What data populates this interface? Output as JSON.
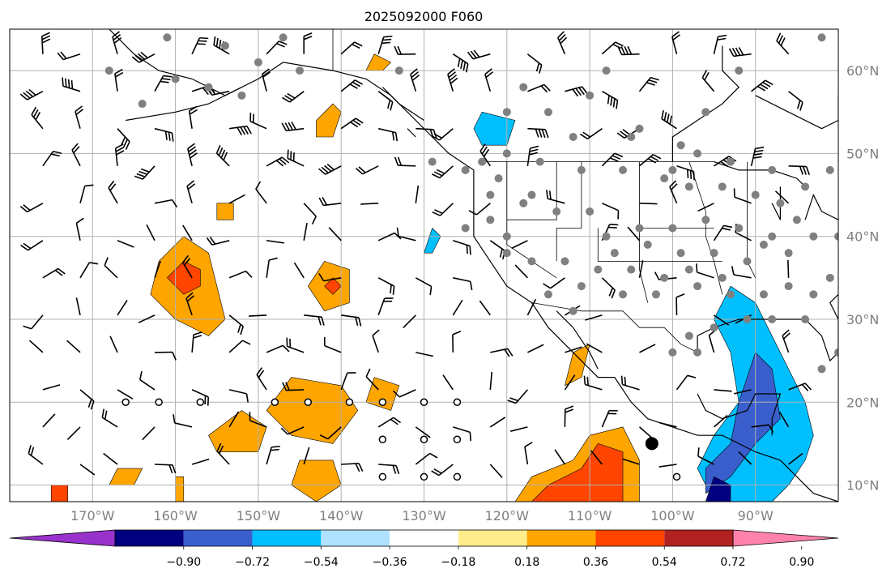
{
  "title": "2025092000 F060",
  "map": {
    "lon_range": [
      -180,
      -80
    ],
    "lat_range": [
      8,
      65
    ],
    "lat_labels": [
      {
        "lat": 60,
        "text": "60°N"
      },
      {
        "lat": 50,
        "text": "50°N"
      },
      {
        "lat": 40,
        "text": "40°N"
      },
      {
        "lat": 30,
        "text": "30°N"
      },
      {
        "lat": 20,
        "text": "20°N"
      },
      {
        "lat": 10,
        "text": "10°N"
      }
    ],
    "lon_labels": [
      {
        "lon": -170,
        "text": "170°W"
      },
      {
        "lon": -160,
        "text": "160°W"
      },
      {
        "lon": -150,
        "text": "150°W"
      },
      {
        "lon": -140,
        "text": "140°W"
      },
      {
        "lon": -130,
        "text": "130°W"
      },
      {
        "lon": -120,
        "text": "120°W"
      },
      {
        "lon": -110,
        "text": "110°W"
      },
      {
        "lon": -100,
        "text": "100°W"
      },
      {
        "lon": -90,
        "text": "90°W"
      }
    ],
    "gridlines": true,
    "colors": {
      "grid": "#b0b0b0",
      "coast": "#000000",
      "station": "#808080",
      "label": "#7f7f7f"
    },
    "stations_filled": [
      [
        -161,
        64
      ],
      [
        -154,
        63
      ],
      [
        -168,
        60
      ],
      [
        -160,
        59
      ],
      [
        -164,
        56
      ],
      [
        -150,
        61
      ],
      [
        -152,
        57
      ],
      [
        -147,
        64
      ],
      [
        -145,
        60
      ],
      [
        -156,
        58
      ],
      [
        -133,
        60
      ],
      [
        -118,
        58
      ],
      [
        -108,
        60
      ],
      [
        -110,
        57
      ],
      [
        -115,
        55
      ],
      [
        -120,
        55
      ],
      [
        -112,
        52
      ],
      [
        -105,
        52
      ],
      [
        -104,
        53
      ],
      [
        -96,
        55
      ],
      [
        -100,
        48
      ],
      [
        -97,
        50
      ],
      [
        -99,
        51
      ],
      [
        -93,
        49
      ],
      [
        -88,
        48
      ],
      [
        -81,
        48
      ],
      [
        -84,
        46
      ],
      [
        -82,
        64
      ],
      [
        -92,
        60
      ],
      [
        -123,
        49
      ],
      [
        -120,
        50
      ],
      [
        -116,
        49
      ],
      [
        -111,
        48
      ],
      [
        -106,
        48
      ],
      [
        -101,
        47
      ],
      [
        -98,
        46
      ],
      [
        -94,
        46
      ],
      [
        -90,
        45
      ],
      [
        -87,
        44
      ],
      [
        -85,
        42
      ],
      [
        -83,
        40
      ],
      [
        -80,
        40
      ],
      [
        -88,
        40
      ],
      [
        -92,
        41
      ],
      [
        -96,
        42
      ],
      [
        -100,
        41
      ],
      [
        -104,
        41
      ],
      [
        -108,
        40
      ],
      [
        -110,
        43
      ],
      [
        -114,
        43
      ],
      [
        -118,
        44
      ],
      [
        -122,
        45
      ],
      [
        -122,
        42
      ],
      [
        -120,
        40
      ],
      [
        -117,
        37
      ],
      [
        -113,
        37
      ],
      [
        -109,
        36
      ],
      [
        -105,
        36
      ],
      [
        -101,
        35
      ],
      [
        -97,
        34
      ],
      [
        -93,
        33
      ],
      [
        -89,
        33
      ],
      [
        -86,
        34
      ],
      [
        -83,
        33
      ],
      [
        -81,
        35
      ],
      [
        -84,
        30
      ],
      [
        -88,
        30
      ],
      [
        -91,
        30
      ],
      [
        -95,
        29
      ],
      [
        -98,
        28
      ],
      [
        -100,
        26
      ],
      [
        -97,
        26
      ],
      [
        -94,
        35
      ],
      [
        -99,
        38
      ],
      [
        -103,
        39
      ],
      [
        -107,
        38
      ],
      [
        -111,
        34
      ],
      [
        -115,
        33
      ],
      [
        -112,
        31
      ],
      [
        -120,
        38
      ],
      [
        -125,
        41
      ],
      [
        -125,
        48
      ],
      [
        -129,
        49
      ],
      [
        -121,
        47
      ],
      [
        -117,
        45
      ],
      [
        -106,
        33
      ],
      [
        -102,
        33
      ],
      [
        -98,
        36
      ],
      [
        -95,
        38
      ],
      [
        -91,
        37
      ],
      [
        -86,
        38
      ],
      [
        -89,
        39
      ],
      [
        -82,
        24
      ],
      [
        -80,
        26
      ]
    ],
    "stations_open": [
      [
        -166,
        20
      ],
      [
        -162,
        20
      ],
      [
        -157,
        20
      ],
      [
        -148,
        20
      ],
      [
        -144,
        20
      ],
      [
        -139,
        20
      ],
      [
        -135,
        20
      ],
      [
        -130,
        20
      ],
      [
        -126,
        20
      ],
      [
        -135,
        15.5
      ],
      [
        -130,
        15.5
      ],
      [
        -126,
        15.5
      ],
      [
        -135,
        11
      ],
      [
        -130,
        11
      ],
      [
        -126,
        11
      ],
      [
        -99.5,
        11
      ]
    ],
    "station_large": [
      -102.5,
      15
    ],
    "shaded_regions": [
      {
        "level": 0.36,
        "color": "#ffa500",
        "poly": [
          [
            -159,
            40
          ],
          [
            -156,
            38
          ],
          [
            -155,
            34
          ],
          [
            -154,
            30
          ],
          [
            -156,
            28
          ],
          [
            -160,
            30
          ],
          [
            -163,
            33
          ],
          [
            -162,
            37
          ]
        ]
      },
      {
        "level": 0.54,
        "color": "#ff4500",
        "poly": [
          [
            -159,
            37
          ],
          [
            -157,
            36
          ],
          [
            -157,
            34
          ],
          [
            -159,
            33
          ],
          [
            -161,
            35
          ]
        ]
      },
      {
        "level": 0.36,
        "color": "#ffa500",
        "poly": [
          [
            -142,
            37
          ],
          [
            -139,
            36
          ],
          [
            -139,
            32
          ],
          [
            -142,
            31
          ],
          [
            -144,
            34
          ]
        ]
      },
      {
        "level": 0.54,
        "color": "#ff4500",
        "poly": [
          [
            -141,
            35
          ],
          [
            -140,
            34
          ],
          [
            -141,
            33
          ],
          [
            -142,
            34
          ]
        ]
      },
      {
        "level": 0.36,
        "color": "#ffa500",
        "poly": [
          [
            -146,
            23
          ],
          [
            -140,
            22
          ],
          [
            -138,
            19
          ],
          [
            -141,
            15
          ],
          [
            -146,
            16
          ],
          [
            -149,
            19
          ]
        ]
      },
      {
        "level": 0.36,
        "color": "#ffa500",
        "poly": [
          [
            -152,
            19
          ],
          [
            -149,
            17
          ],
          [
            -150,
            14
          ],
          [
            -155,
            14
          ],
          [
            -156,
            16
          ]
        ]
      },
      {
        "level": 0.36,
        "color": "#ffa500",
        "poly": [
          [
            -136,
            23
          ],
          [
            -133,
            22
          ],
          [
            -134,
            19
          ],
          [
            -137,
            20
          ]
        ]
      },
      {
        "level": 0.36,
        "color": "#ffa500",
        "poly": [
          [
            -145,
            13
          ],
          [
            -141,
            13
          ],
          [
            -140,
            10
          ],
          [
            -143,
            8
          ],
          [
            -146,
            10
          ]
        ]
      },
      {
        "level": 0.36,
        "color": "#ffa500",
        "poly": [
          [
            -141,
            56
          ],
          [
            -140,
            55
          ],
          [
            -141,
            52
          ],
          [
            -143,
            52
          ],
          [
            -143,
            54
          ]
        ]
      },
      {
        "level": 0.36,
        "color": "#ffa500",
        "poly": [
          [
            -136,
            62
          ],
          [
            -134,
            61
          ],
          [
            -135,
            60
          ],
          [
            -137,
            60
          ]
        ]
      },
      {
        "level": 0.36,
        "color": "#ffa500",
        "poly": [
          [
            -119,
            8
          ],
          [
            -117,
            11
          ],
          [
            -112,
            13
          ],
          [
            -110,
            16
          ],
          [
            -106,
            17
          ],
          [
            -104,
            13
          ],
          [
            -104,
            8
          ]
        ]
      },
      {
        "level": 0.54,
        "color": "#ff4500",
        "poly": [
          [
            -117,
            8
          ],
          [
            -115,
            10
          ],
          [
            -111,
            12
          ],
          [
            -109,
            15
          ],
          [
            -106,
            14
          ],
          [
            -106,
            8
          ]
        ]
      },
      {
        "level": 0.36,
        "color": "#ffa500",
        "poly": [
          [
            -112,
            26
          ],
          [
            -110,
            27
          ],
          [
            -111,
            23
          ],
          [
            -113,
            22
          ]
        ]
      },
      {
        "level": 0.36,
        "color": "#ffa500",
        "poly": [
          [
            -167,
            12
          ],
          [
            -164,
            12
          ],
          [
            -165,
            10
          ],
          [
            -168,
            10
          ]
        ]
      },
      {
        "level": 0.36,
        "color": "#ffa500",
        "poly": [
          [
            -155,
            44
          ],
          [
            -153,
            44
          ],
          [
            -153,
            42
          ],
          [
            -155,
            42
          ]
        ]
      },
      {
        "level": 0.54,
        "color": "#ff4500",
        "poly": [
          [
            -175,
            10
          ],
          [
            -173,
            10
          ],
          [
            -173,
            8
          ],
          [
            -175,
            8
          ]
        ]
      },
      {
        "level": 0.36,
        "color": "#ffa500",
        "poly": [
          [
            -160,
            11
          ],
          [
            -159,
            11
          ],
          [
            -159,
            8
          ],
          [
            -160,
            8
          ]
        ]
      },
      {
        "level": -0.36,
        "color": "#00bfff",
        "poly": [
          [
            -93,
            34
          ],
          [
            -90,
            32
          ],
          [
            -86,
            24
          ],
          [
            -84,
            20
          ],
          [
            -83,
            16
          ],
          [
            -84,
            13
          ],
          [
            -86,
            10
          ],
          [
            -88,
            8
          ],
          [
            -95,
            8
          ],
          [
            -97,
            12
          ],
          [
            -95,
            16
          ],
          [
            -92,
            20
          ],
          [
            -93,
            26
          ],
          [
            -95,
            30
          ]
        ]
      },
      {
        "level": -0.54,
        "color": "#3a5fcd",
        "poly": [
          [
            -90,
            26
          ],
          [
            -88,
            24
          ],
          [
            -87,
            18
          ],
          [
            -90,
            15
          ],
          [
            -93,
            11
          ],
          [
            -96,
            9
          ],
          [
            -96,
            12
          ],
          [
            -93,
            15
          ],
          [
            -92,
            20
          ]
        ]
      },
      {
        "level": -0.72,
        "color": "#000080",
        "poly": [
          [
            -95,
            11
          ],
          [
            -93,
            10
          ],
          [
            -93,
            8
          ],
          [
            -96,
            8
          ]
        ]
      },
      {
        "level": -0.36,
        "color": "#00bfff",
        "poly": [
          [
            -123,
            55
          ],
          [
            -119,
            54
          ],
          [
            -120,
            51
          ],
          [
            -123,
            51
          ],
          [
            -124,
            53
          ]
        ]
      },
      {
        "level": -0.36,
        "color": "#00bfff",
        "poly": [
          [
            -129,
            41
          ],
          [
            -128,
            40
          ],
          [
            -129,
            38
          ],
          [
            -130,
            38
          ]
        ]
      }
    ],
    "barb_note": "wind barbs"
  },
  "colorbar": {
    "colors": [
      "#9932cc",
      "#000080",
      "#3a5fcd",
      "#00bfff",
      "#b0e2ff",
      "#ffffff",
      "#ffec8b",
      "#ffa500",
      "#ff4500",
      "#b22222",
      "#ff82ab"
    ],
    "tick_labels": [
      "−0.90",
      "−0.72",
      "−0.54",
      "−0.36",
      "−0.18",
      "0.18",
      "0.36",
      "0.54",
      "0.72",
      "0.90"
    ]
  }
}
